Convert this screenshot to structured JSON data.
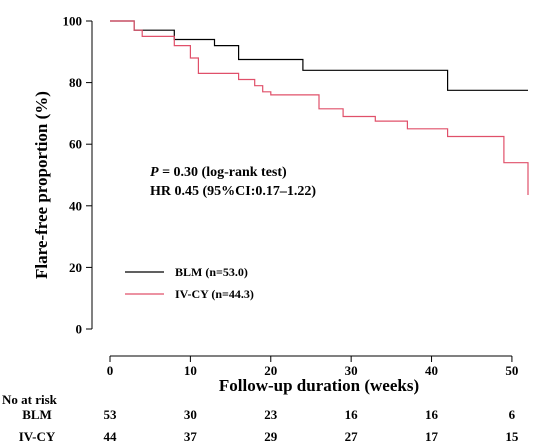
{
  "chart_data": {
    "type": "line",
    "subtype": "kaplan-meier step curves",
    "title": "",
    "xlabel": "Follow-up duration (weeks)",
    "ylabel": "Flare-free proportion (%)",
    "xlim": [
      0,
      52
    ],
    "ylim": [
      0,
      100
    ],
    "xticks": [
      0,
      10,
      20,
      30,
      40,
      50
    ],
    "yticks": [
      0,
      20,
      40,
      60,
      80,
      100
    ],
    "grid": false,
    "legend_position": "lower-left",
    "annotations": {
      "p_prefix": "P",
      "p_rest": " = 0.30 (log-rank test)",
      "hr": "HR 0.45 (95%CI:0.17–1.22)"
    },
    "series": [
      {
        "name": "BLM (n=53.0)",
        "color": "#000000",
        "x": [
          0,
          3,
          8,
          13,
          16,
          24,
          42,
          52
        ],
        "y": [
          100,
          97,
          94,
          92,
          87.5,
          84,
          77.5,
          77.5
        ]
      },
      {
        "name": "IV-CY (n=44.3)",
        "color": "#e0506a",
        "x": [
          0,
          3,
          4,
          8,
          10,
          11,
          16,
          18,
          19,
          20,
          26,
          29,
          33,
          37,
          42,
          49,
          52,
          52
        ],
        "y": [
          100,
          97,
          95,
          92,
          88,
          83,
          81,
          79,
          77,
          76,
          71.5,
          69,
          67.5,
          65,
          62.5,
          54,
          54,
          43.5
        ]
      }
    ],
    "risk_table": {
      "header": "No at risk",
      "times": [
        0,
        10,
        20,
        30,
        40,
        50
      ],
      "rows": [
        {
          "label": "BLM",
          "values": [
            "53",
            "30",
            "23",
            "16",
            "16",
            "6"
          ]
        },
        {
          "label": "IV-CY",
          "values": [
            "44",
            "37",
            "29",
            "27",
            "17",
            "15"
          ]
        }
      ]
    }
  }
}
